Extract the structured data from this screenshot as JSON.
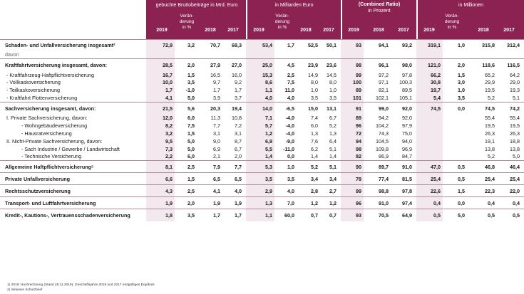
{
  "header": {
    "group1": "gebuchte Bruttobeiträge in Mrd. Euro",
    "group2": "in Milliarden Euro",
    "group3_title": "(Combined Ratio)",
    "group3_sub": "in Prozent",
    "group4": "in Millionen",
    "col_2019": "2019",
    "col_change": "Veränderung in %",
    "col_change_l1": "Verän-",
    "col_change_l2": "derung",
    "col_change_l3": "in %",
    "col_2018": "2018",
    "col_2017": "2017"
  },
  "rows": [
    {
      "label": "Schaden- und Unfallversicherung insgesamt²",
      "type": "bold",
      "v": [
        "72,9",
        "3,2",
        "70,7",
        "68,3",
        "53,4",
        "1,7",
        "52,5",
        "50,1",
        "93",
        "94,1",
        "93,2",
        "319,1",
        "1,0",
        "315,8",
        "312,4"
      ]
    },
    {
      "label": "davon",
      "type": "davon",
      "v": [
        "",
        "",
        "",
        "",
        "",
        "",
        "",
        "",
        "",
        "",
        "",
        "",
        "",
        "",
        ""
      ]
    },
    {
      "label": "Kraftfahrtversicherung insgesamt, davon:",
      "type": "bold",
      "v": [
        "28,5",
        "2,0",
        "27,9",
        "27,0",
        "25,0",
        "4,5",
        "23,9",
        "23,6",
        "98",
        "96,1",
        "98,0",
        "121,0",
        "2,0",
        "118,6",
        "116,5"
      ]
    },
    {
      "label": "- Kraftfahrzeug-Haftpflichtversicherung",
      "type": "sub",
      "v": [
        "16,7",
        "1,5",
        "16,5",
        "16,0",
        "15,3",
        "2,5",
        "14,9",
        "14,5",
        "99",
        "97,2",
        "97,8",
        "66,2",
        "1,5",
        "65,2",
        "64,2"
      ]
    },
    {
      "label": "- Vollkaskoversicherung",
      "type": "sub",
      "v": [
        "10,0",
        "3,5",
        "9,7",
        "9,2",
        "8,6",
        "7,5",
        "8,0",
        "8,0",
        "100",
        "97,1",
        "100,3",
        "30,8",
        "3,0",
        "29,9",
        "29,0"
      ]
    },
    {
      "label": "- Teilkaskoversicherung",
      "type": "sub",
      "v": [
        "1,7",
        "-1,0",
        "1,7",
        "1,7",
        "1,1",
        "11,0",
        "1,0",
        "1,0",
        "89",
        "82,1",
        "89,5",
        "19,7",
        "1,0",
        "19,5",
        "19,3"
      ]
    },
    {
      "label": "- Kraftfahrt Flottenversicherung",
      "type": "sub",
      "v": [
        "4,1",
        "5,0",
        "3,9",
        "3,7",
        "4,0",
        "4,0",
        "3,5",
        "3,5",
        "101",
        "102,1",
        "105,1",
        "5,4",
        "3,5",
        "5,2",
        "5,1"
      ]
    },
    {
      "label": "Sachversicherung insgesamt, davon:",
      "type": "bold",
      "v": [
        "21,5",
        "5,6",
        "20,3",
        "19,4",
        "14,0",
        "-6,5",
        "15,0",
        "13,1",
        "91",
        "99,0",
        "92,0",
        "74,5",
        "0,0",
        "74,5",
        "74,2"
      ]
    },
    {
      "label": "I. Private Sachversicherung, davon:",
      "type": "sub",
      "v": [
        "12,0",
        "6,0",
        "11,3",
        "10,8",
        "7,1",
        "-4,0",
        "7,4",
        "6,7",
        "89",
        "94,2",
        "92,0",
        "",
        "",
        "55,4",
        "55,4"
      ]
    },
    {
      "label": "- Wohngebäudeversicherung",
      "type": "sub2",
      "v": [
        "8,2",
        "7,5",
        "7,7",
        "7,2",
        "5,7",
        "-4,0",
        "6,0",
        "5,2",
        "96",
        "104,2",
        "97,9",
        "",
        "",
        "19,5",
        "19,5"
      ]
    },
    {
      "label": "- Hausratversicherung",
      "type": "sub2",
      "v": [
        "3,2",
        "1,5",
        "3,1",
        "3,1",
        "1,2",
        "-4,0",
        "1,3",
        "1,3",
        "72",
        "74,3",
        "75,0",
        "",
        "",
        "26,3",
        "26,3"
      ]
    },
    {
      "label": "II. Nicht-Private Sachversicherung, davon:",
      "type": "sub",
      "v": [
        "9,5",
        "5,0",
        "9,0",
        "8,7",
        "6,9",
        "-9,0",
        "7,6",
        "6,4",
        "94",
        "104,5",
        "94,0",
        "",
        "",
        "19,1",
        "18,8"
      ]
    },
    {
      "label": "- Sach Industrie / Gewerbe / Landwirtschaft",
      "type": "sub2",
      "v": [
        "7,3",
        "5,0",
        "6,9",
        "6,7",
        "5,5",
        "-11,0",
        "6,2",
        "5,1",
        "98",
        "109,8",
        "96,9",
        "",
        "",
        "13,8",
        "13,8"
      ]
    },
    {
      "label": "- Technische Versicherung",
      "type": "sub2",
      "v": [
        "2,2",
        "6,0",
        "2,1",
        "2,0",
        "1,4",
        "0,0",
        "1,4",
        "1,4",
        "82",
        "86,9",
        "84,7",
        "",
        "",
        "5,2",
        "5,0"
      ]
    },
    {
      "label": "Allgemeine Haftpflichtversicherung⁵",
      "type": "bold",
      "v": [
        "8,1",
        "2,5",
        "7,9",
        "7,7",
        "5,3",
        "1,0",
        "5,2",
        "5,1",
        "90",
        "89,7",
        "91,0",
        "47,0",
        "0,5",
        "46,8",
        "46,4"
      ]
    },
    {
      "label": "Private Unfallversicherung",
      "type": "bold",
      "v": [
        "6,6",
        "1,5",
        "6,5",
        "6,5",
        "3,5",
        "3,5",
        "3,4",
        "3,4",
        "78",
        "77,4",
        "81,5",
        "25,4",
        "0,5",
        "25,4",
        "25,4"
      ]
    },
    {
      "label": "Rechtsschutzversicherung",
      "type": "bold",
      "v": [
        "4,3",
        "2,5",
        "4,1",
        "4,0",
        "2,9",
        "4,0",
        "2,8",
        "2,7",
        "99",
        "98,8",
        "97,8",
        "22,6",
        "1,5",
        "22,3",
        "22,0"
      ]
    },
    {
      "label": "Transport- und Luftfahrtversicherung",
      "type": "bold",
      "v": [
        "1,9",
        "2,0",
        "1,9",
        "1,9",
        "1,3",
        "7,0",
        "1,2",
        "1,2",
        "96",
        "91,0",
        "97,4",
        "0,4",
        "0,0",
        "0,4",
        "0,4"
      ]
    },
    {
      "label": "Kredit-, Kautions-, Vertrauensschadenversicherung",
      "type": "bold",
      "v": [
        "1,8",
        "3,5",
        "1,7",
        "1,7",
        "1,1",
        "60,0",
        "0,7",
        "0,7",
        "93",
        "70,5",
        "64,9",
        "0,5",
        "5,0",
        "0,5",
        "0,5"
      ]
    }
  ],
  "footnotes": {
    "f1": "1)   2019: Hochrechnung (Stand 28.11.2019), Geschäftsjahre 2018 und 2017 endgültiges Ergebnis",
    "f2": "2)   inklusive Schutzbrief"
  },
  "colors": {
    "accent": "#8b2252",
    "shade": "#f2e8ed"
  }
}
